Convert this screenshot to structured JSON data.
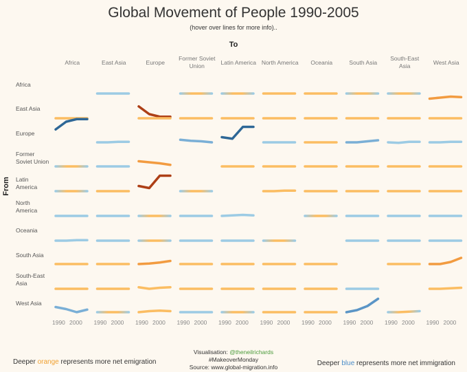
{
  "chart_data": {
    "type": "line",
    "title": "Global Movement of People 1990-2005",
    "subtitle": "(hover over lines for more info)..",
    "xlabel": "To",
    "ylabel": "From",
    "regions": [
      "Africa",
      "East Asia",
      "Europe",
      "Former Soviet Union",
      "Latin America",
      "North America",
      "Oceania",
      "South Asia",
      "South-East Asia",
      "West Asia"
    ],
    "col_labels": [
      "Africa",
      "East Asia",
      "Europe",
      "Former Soviet\nUnion",
      "Latin America",
      "North America",
      "Oceania",
      "South Asia",
      "South-East\nAsia",
      "West Asia"
    ],
    "row_labels": [
      "Africa",
      "East Asia",
      "Europe",
      "Former\nSoviet Union",
      "Latin\nAmerica",
      "North\nAmerica",
      "Oceania",
      "South Asia",
      "South-East\nAsia",
      "West Asia"
    ],
    "x": [
      1990,
      1995,
      2000,
      2005
    ],
    "x_ticks": [
      "1990",
      "2000"
    ],
    "lines": [
      [
        null,
        [
          0,
          0,
          0,
          0,
          "b"
        ],
        [
          -2.5,
          -4,
          -4.5,
          -4.5,
          "o"
        ],
        [
          0,
          0,
          0,
          0,
          "m"
        ],
        [
          0,
          0,
          0,
          0,
          "m"
        ],
        [
          0,
          0,
          0,
          0,
          "o"
        ],
        [
          0,
          0,
          0,
          0,
          "o"
        ],
        [
          0,
          0,
          0,
          0,
          "m"
        ],
        [
          0,
          0,
          0,
          0,
          "m"
        ],
        [
          -1,
          -0.8,
          -0.6,
          -0.7,
          "o"
        ]
      ],
      [
        [
          0,
          0,
          0,
          0,
          "o"
        ],
        null,
        [
          0,
          0,
          0,
          0,
          "o"
        ],
        [
          0,
          0,
          0,
          0,
          "o"
        ],
        [
          0,
          0,
          0,
          0,
          "o"
        ],
        [
          0,
          0,
          0,
          0,
          "o"
        ],
        [
          0,
          0,
          0,
          0,
          "o"
        ],
        [
          0,
          0,
          0,
          0,
          "o"
        ],
        [
          0,
          0,
          0,
          0,
          "o"
        ],
        [
          0,
          0,
          0,
          0,
          "o"
        ]
      ],
      [
        [
          2.5,
          4,
          4.5,
          4.5,
          "b"
        ],
        [
          0,
          0,
          0.1,
          0.1,
          "b"
        ],
        null,
        [
          0.5,
          0.3,
          0.2,
          0,
          "b"
        ],
        [
          1,
          0.7,
          3,
          3,
          "b"
        ],
        [
          0,
          0,
          0,
          0,
          "b"
        ],
        [
          0,
          0,
          0,
          0,
          "o"
        ],
        [
          0,
          0,
          0.2,
          0.4,
          "b"
        ],
        [
          0,
          -0.1,
          0.1,
          0.1,
          "b"
        ],
        [
          0,
          0,
          0.1,
          0.1,
          "b"
        ]
      ],
      [
        [
          0,
          0,
          0,
          0,
          "m"
        ],
        [
          0,
          0,
          0,
          0,
          "b"
        ],
        [
          1,
          0.8,
          0.6,
          0.3,
          "o"
        ],
        null,
        [
          0,
          0,
          0,
          0,
          "o"
        ],
        [
          0,
          0,
          0,
          0,
          "o"
        ],
        [
          0,
          0,
          0,
          0,
          "o"
        ],
        [
          0,
          0,
          0,
          0,
          "o"
        ],
        [
          0,
          0,
          0,
          0,
          "o"
        ],
        [
          0,
          0,
          0,
          0,
          "o"
        ]
      ],
      [
        [
          0,
          0,
          0,
          0,
          "m"
        ],
        [
          0,
          0,
          0,
          0,
          "o"
        ],
        [
          1,
          0.6,
          3,
          3,
          "o"
        ],
        [
          0,
          0,
          0,
          0,
          "m"
        ],
        null,
        [
          0,
          0,
          0.1,
          0.1,
          "o"
        ],
        [
          0,
          0,
          0,
          0,
          "o"
        ],
        [
          0,
          0,
          0,
          0,
          "o"
        ],
        [
          0,
          0,
          0,
          0,
          "o"
        ],
        [
          0,
          0,
          0,
          0,
          "o"
        ]
      ],
      [
        [
          0,
          0,
          0,
          0,
          "b"
        ],
        [
          0,
          0,
          0,
          0,
          "b"
        ],
        [
          0,
          0,
          0,
          0,
          "m"
        ],
        [
          0,
          0,
          0,
          0,
          "b"
        ],
        [
          0,
          0.1,
          0.2,
          0.1,
          "b"
        ],
        null,
        [
          0,
          0,
          0,
          0,
          "m"
        ],
        [
          0,
          0,
          0,
          0,
          "b"
        ],
        [
          0,
          0,
          0,
          0,
          "b"
        ],
        [
          0,
          0,
          0,
          0,
          "b"
        ]
      ],
      [
        [
          0,
          0,
          0.1,
          0.1,
          "b"
        ],
        [
          0,
          0,
          0,
          0,
          "b"
        ],
        [
          0,
          0,
          0,
          0,
          "m"
        ],
        [
          0,
          0,
          0,
          0,
          "b"
        ],
        [
          0,
          0,
          0,
          0,
          "b"
        ],
        [
          0,
          0,
          0,
          0,
          "m"
        ],
        null,
        [
          0,
          0,
          0,
          0,
          "b"
        ],
        [
          0,
          0,
          0,
          0,
          "b"
        ],
        [
          0,
          0,
          0,
          0,
          "b"
        ]
      ],
      [
        [
          0,
          0,
          0,
          0,
          "o"
        ],
        [
          0,
          0,
          0,
          0,
          "o"
        ],
        [
          0,
          0.1,
          0.3,
          0.6,
          "o"
        ],
        [
          0,
          0,
          0,
          0,
          "o"
        ],
        [
          0,
          0,
          0,
          0,
          "o"
        ],
        [
          0,
          0,
          0,
          0,
          "o"
        ],
        [
          0,
          0,
          0,
          0,
          "o"
        ],
        null,
        [
          0,
          0,
          0,
          0,
          "o"
        ],
        [
          0,
          0,
          0.4,
          1.2,
          "o"
        ]
      ],
      [
        [
          0,
          0,
          0,
          0,
          "o"
        ],
        [
          0,
          0,
          0,
          0,
          "o"
        ],
        [
          0.3,
          0,
          0.2,
          0.3,
          "o"
        ],
        [
          0,
          0,
          0,
          0,
          "o"
        ],
        [
          0,
          0,
          0,
          0,
          "o"
        ],
        [
          0,
          0,
          0,
          0,
          "o"
        ],
        [
          0,
          0,
          0,
          0,
          "o"
        ],
        [
          0,
          0,
          0,
          0,
          "b"
        ],
        null,
        [
          0,
          0,
          0.1,
          0.2,
          "o"
        ]
      ],
      [
        [
          1,
          0.6,
          0,
          0.5,
          "b"
        ],
        [
          0,
          0,
          0,
          0,
          "m"
        ],
        [
          0,
          0.2,
          0.3,
          0.2,
          "o"
        ],
        [
          0,
          0,
          0,
          0,
          "b"
        ],
        [
          0,
          0,
          0,
          0,
          "m"
        ],
        [
          0,
          0,
          0,
          0,
          "o"
        ],
        [
          0,
          0,
          0,
          0,
          "o"
        ],
        [
          0,
          0.4,
          1.2,
          2.6,
          "b"
        ],
        [
          0,
          0,
          0.1,
          0.2,
          "m"
        ],
        null
      ]
    ]
  },
  "colors": {
    "orange_light": "#fbbd62",
    "orange_mid": "#f29b40",
    "orange_dark": "#d0622a",
    "orange_deep": "#ad3f16",
    "blue_light": "#9ccbe4",
    "blue_mid": "#5b95c6",
    "blue_deep": "#2e6796"
  },
  "credits": {
    "line1_prefix": "Visualisation: ",
    "line1_handle": "@theneilrichards",
    "line2": "#MakeoverMonday",
    "line3": "Source: www.global-migration.info"
  },
  "legend": {
    "left_prefix": "Deeper ",
    "left_color_word": "orange",
    "left_suffix": " represents more net emigration",
    "right_prefix": "Deeper ",
    "right_color_word": "blue",
    "right_suffix": " represents more net immigration"
  }
}
